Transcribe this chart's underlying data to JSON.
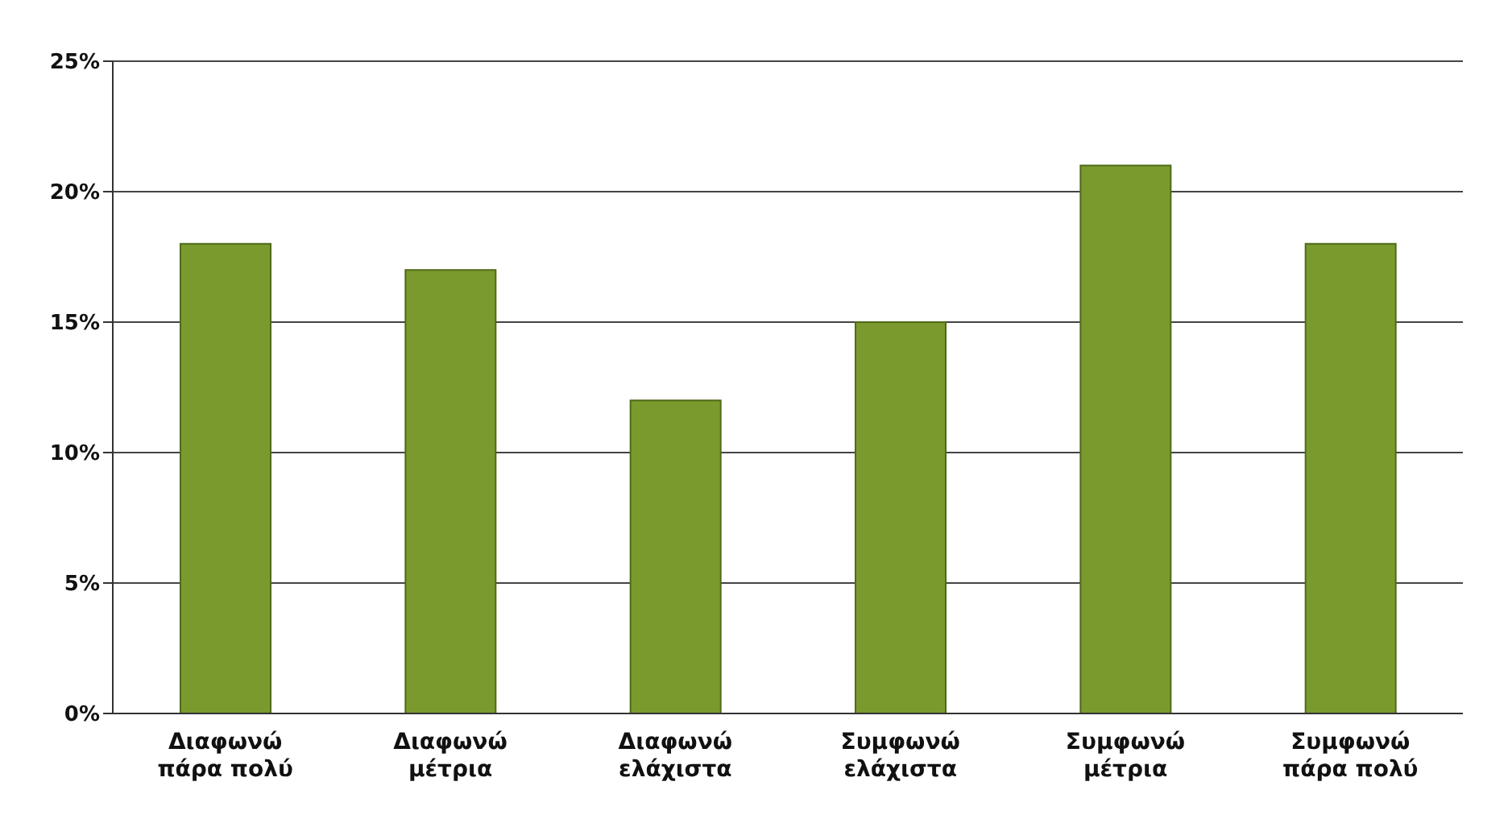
{
  "chart_data": {
    "type": "bar",
    "categories": [
      "Διαφωνώ πάρα πολύ",
      "Διαφωνώ μέτρια",
      "Διαφωνώ ελάχιστα",
      "Συμφωνώ ελάχιστα",
      "Συμφωνώ μέτρια",
      "Συμφωνώ πάρα πολύ"
    ],
    "values": [
      18,
      17,
      12,
      15,
      21,
      18
    ],
    "color": "#7a9a2e",
    "ylim": [
      0,
      25
    ],
    "yticks": [
      {
        "value": 0,
        "label": "0%"
      },
      {
        "value": 5,
        "label": "5%"
      },
      {
        "value": 10,
        "label": "10%"
      },
      {
        "value": 15,
        "label": "15%"
      },
      {
        "value": 20,
        "label": "20%"
      },
      {
        "value": 25,
        "label": "25%"
      }
    ],
    "grid": "y"
  }
}
